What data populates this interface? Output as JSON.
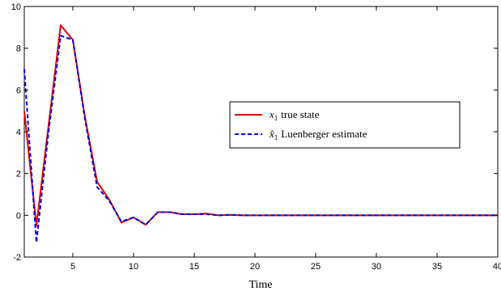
{
  "chart_data": {
    "type": "line",
    "title": "",
    "xlabel": "Time",
    "ylabel": "",
    "xlim": [
      1,
      40
    ],
    "ylim": [
      -2,
      10
    ],
    "xticks": [
      5,
      10,
      15,
      20,
      25,
      30,
      35,
      40
    ],
    "yticks": [
      -2,
      0,
      2,
      4,
      6,
      8,
      10
    ],
    "grid": false,
    "legend_position": "center-right",
    "x": [
      1,
      2,
      3,
      4,
      5,
      6,
      7,
      8,
      9,
      10,
      11,
      12,
      13,
      14,
      15,
      16,
      17,
      18,
      19,
      20,
      21,
      22,
      23,
      24,
      25,
      26,
      27,
      28,
      29,
      30,
      31,
      32,
      33,
      34,
      35,
      36,
      37,
      38,
      39,
      40
    ],
    "series": [
      {
        "name": "x₁ true state",
        "legend_symbol": "x",
        "legend_subscript": "1",
        "legend_text": "true state",
        "color": "#e00000",
        "dash": "solid",
        "values": [
          5.0,
          -0.5,
          4.3,
          9.1,
          8.4,
          4.7,
          1.6,
          0.75,
          -0.35,
          -0.1,
          -0.45,
          0.15,
          0.15,
          0.05,
          0.05,
          0.08,
          0.0,
          0.02,
          0.0,
          0.0,
          0.0,
          0.0,
          0.0,
          0.0,
          0.0,
          0.0,
          0.0,
          0.0,
          0.0,
          0.0,
          0.0,
          0.0,
          0.0,
          0.0,
          0.0,
          0.0,
          0.0,
          0.0,
          0.0,
          0.0
        ]
      },
      {
        "name": "x̂₁ Luenberger estimate",
        "legend_symbol": "x̂",
        "legend_subscript": "1",
        "legend_text": "Luenberger estimate",
        "color": "#0000e6",
        "dash": "dashed",
        "values": [
          7.0,
          -1.3,
          4.0,
          8.6,
          8.4,
          4.6,
          1.35,
          0.7,
          -0.3,
          -0.1,
          -0.45,
          0.15,
          0.15,
          0.05,
          0.05,
          0.05,
          0.0,
          0.02,
          0.0,
          0.0,
          0.0,
          0.0,
          0.0,
          0.0,
          0.0,
          0.0,
          0.0,
          0.0,
          0.0,
          0.0,
          0.0,
          0.0,
          0.0,
          0.0,
          0.0,
          0.0,
          0.0,
          0.0,
          0.0,
          0.0
        ]
      }
    ]
  }
}
